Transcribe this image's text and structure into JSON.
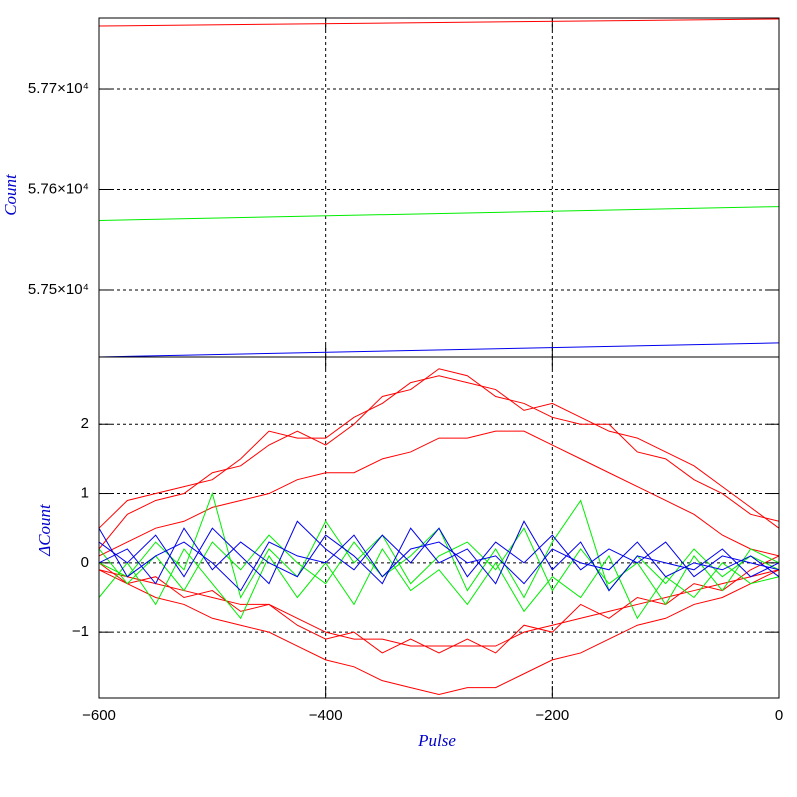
{
  "chart_data": [
    {
      "type": "line",
      "ylabel": "Count",
      "x": [
        -600,
        0
      ],
      "xlim": [
        -600,
        0
      ],
      "xticks": [
        -600,
        -400,
        -200,
        0
      ],
      "ylim": [
        57433.3,
        57770.7
      ],
      "yticks": [
        {
          "value": 57500,
          "label": "5.75×10⁴"
        },
        {
          "value": 57600,
          "label": "5.76×10⁴"
        },
        {
          "value": 57700,
          "label": "5.77×10⁴"
        }
      ],
      "grid": true,
      "series": [
        {
          "color": "#ff0000",
          "values": [
            57762.7,
            57769.7
          ]
        },
        {
          "color": "#00ee00",
          "values": [
            57569.2,
            57583.0
          ]
        },
        {
          "color": "#0000ee",
          "values": [
            57433.3,
            57447.3
          ]
        }
      ]
    },
    {
      "type": "line",
      "xlabel": "Pulse",
      "ylabel": "ΔCount",
      "x": [
        -600,
        -575,
        -550,
        -525,
        -500,
        -475,
        -450,
        -425,
        -400,
        -375,
        -350,
        -325,
        -300,
        -275,
        -250,
        -225,
        -200,
        -175,
        -150,
        -125,
        -100,
        -75,
        -50,
        -25,
        0
      ],
      "xlim": [
        -600,
        0
      ],
      "xticks": [
        {
          "value": -600,
          "label": "−600"
        },
        {
          "value": -400,
          "label": "−400"
        },
        {
          "value": -200,
          "label": "−200"
        },
        0
      ],
      "ylim": [
        -1.95,
        2.97
      ],
      "yticks": [
        {
          "value": -1,
          "label": "−1"
        },
        0,
        1,
        2
      ],
      "grid": true,
      "series": [
        {
          "color": "#ff0000",
          "values": [
            0.5,
            0.9,
            1.0,
            1.1,
            1.2,
            1.5,
            1.9,
            1.8,
            1.8,
            2.1,
            2.3,
            2.6,
            2.7,
            2.6,
            2.5,
            2.2,
            2.3,
            2.1,
            1.9,
            1.8,
            1.6,
            1.4,
            1.1,
            0.8,
            0.5
          ]
        },
        {
          "color": "#ff0000",
          "values": [
            0.2,
            0.7,
            0.9,
            1.0,
            1.3,
            1.4,
            1.7,
            1.9,
            1.7,
            2.0,
            2.4,
            2.5,
            2.8,
            2.7,
            2.4,
            2.3,
            2.1,
            2.0,
            2.0,
            1.6,
            1.5,
            1.2,
            1.0,
            0.7,
            0.6
          ]
        },
        {
          "color": "#ff0000",
          "values": [
            0.1,
            0.3,
            0.5,
            0.6,
            0.8,
            0.9,
            1.0,
            1.2,
            1.3,
            1.3,
            1.5,
            1.6,
            1.8,
            1.8,
            1.9,
            1.9,
            1.7,
            1.5,
            1.3,
            1.1,
            0.9,
            0.7,
            0.4,
            0.2,
            0.1
          ]
        },
        {
          "color": "#ff0000",
          "values": [
            -0.1,
            -0.2,
            -0.3,
            -0.4,
            -0.5,
            -0.6,
            -0.6,
            -0.8,
            -1.0,
            -1.1,
            -1.1,
            -1.2,
            -1.2,
            -1.2,
            -1.2,
            -1.0,
            -0.9,
            -0.8,
            -0.7,
            -0.6,
            -0.5,
            -0.4,
            -0.3,
            -0.2,
            -0.1
          ]
        },
        {
          "color": "#ff0000",
          "values": [
            0.0,
            -0.3,
            -0.2,
            -0.5,
            -0.4,
            -0.7,
            -0.6,
            -0.9,
            -1.1,
            -1.0,
            -1.3,
            -1.1,
            -1.3,
            -1.1,
            -1.3,
            -0.9,
            -1.0,
            -0.6,
            -0.8,
            -0.5,
            -0.6,
            -0.3,
            -0.4,
            -0.1,
            0.1
          ]
        },
        {
          "color": "#ff0000",
          "values": [
            -0.1,
            -0.3,
            -0.5,
            -0.6,
            -0.8,
            -0.9,
            -1.0,
            -1.2,
            -1.4,
            -1.5,
            -1.7,
            -1.8,
            -1.9,
            -1.8,
            -1.8,
            -1.6,
            -1.4,
            -1.3,
            -1.1,
            -0.9,
            -0.8,
            -0.6,
            -0.5,
            -0.3,
            -0.1
          ]
        },
        {
          "color": "#00ee00",
          "values": [
            0.2,
            -0.3,
            0.1,
            -0.4,
            0.3,
            -0.1,
            0.4,
            0.0,
            -0.3,
            0.3,
            -0.2,
            0.1,
            0.5,
            -0.4,
            0.2,
            -0.5,
            0.3,
            0.9,
            -0.4,
            0.1,
            -0.3,
            0.2,
            -0.2,
            0.1,
            -0.1
          ]
        },
        {
          "color": "#00ee00",
          "values": [
            -0.5,
            0.0,
            -0.6,
            0.2,
            -0.3,
            -0.8,
            0.1,
            -0.5,
            0.0,
            -0.6,
            0.2,
            -0.4,
            -0.1,
            -0.6,
            0.0,
            -0.7,
            -0.2,
            -0.5,
            0.1,
            -0.8,
            -0.2,
            -0.5,
            0.0,
            -0.3,
            -0.2
          ]
        },
        {
          "color": "#00ee00",
          "values": [
            0.0,
            -0.2,
            0.3,
            -0.1,
            1.0,
            -0.5,
            0.2,
            -0.2,
            0.6,
            0.0,
            0.4,
            -0.3,
            0.1,
            0.3,
            -0.1,
            0.5,
            -0.4,
            0.2,
            -0.3,
            0.0,
            -0.6,
            0.1,
            -0.4,
            0.2,
            0.0
          ]
        },
        {
          "color": "#0000ee",
          "values": [
            0.3,
            0.0,
            0.4,
            -0.2,
            0.5,
            0.1,
            -0.3,
            0.6,
            0.2,
            -0.1,
            0.4,
            0.0,
            0.5,
            -0.2,
            0.3,
            0.0,
            0.4,
            -0.1,
            0.2,
            0.0,
            0.3,
            -0.2,
            0.1,
            0.0,
            -0.1
          ]
        },
        {
          "color": "#0000ee",
          "values": [
            0.0,
            0.2,
            -0.3,
            0.5,
            -0.1,
            0.3,
            0.0,
            -0.2,
            0.4,
            0.1,
            -0.3,
            0.5,
            0.0,
            0.2,
            -0.3,
            0.6,
            -0.1,
            0.3,
            -0.4,
            0.1,
            0.0,
            -0.1,
            0.2,
            -0.2,
            0.0
          ]
        },
        {
          "color": "#0000ee",
          "values": [
            0.5,
            -0.2,
            0.1,
            0.3,
            0.0,
            -0.4,
            0.3,
            0.1,
            0.0,
            0.4,
            -0.2,
            0.2,
            0.3,
            0.0,
            0.1,
            -0.3,
            0.2,
            0.0,
            -0.1,
            0.3,
            -0.2,
            0.0,
            -0.1,
            0.1,
            -0.2
          ]
        }
      ]
    }
  ]
}
